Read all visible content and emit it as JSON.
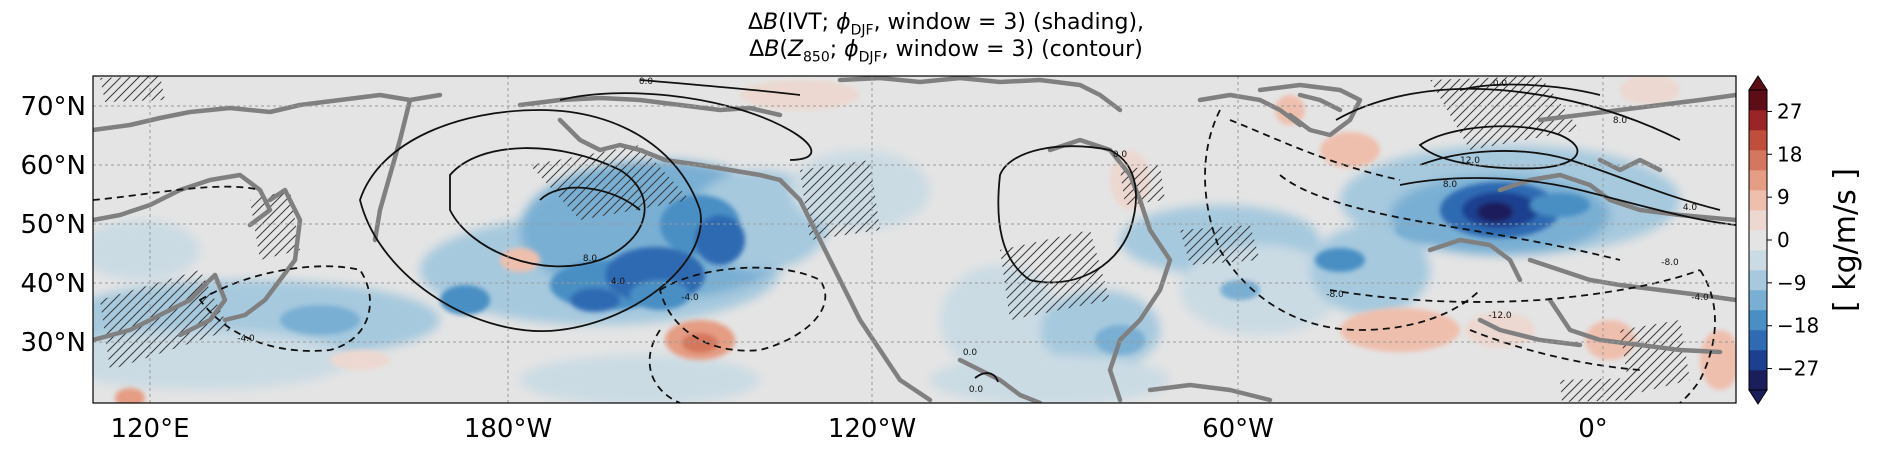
{
  "title": {
    "line1": {
      "delta": "Δ",
      "B": "B",
      "open": "(IVT; ",
      "phi": "ϕ",
      "sub": "DJF",
      "rest": ", window = 3) (shading),"
    },
    "line2": {
      "delta": "Δ",
      "B": "B",
      "open": "(",
      "Z": "Z",
      "zsub": "850",
      "mid": "; ",
      "phi": "ϕ",
      "sub": "DJF",
      "rest": ", window = 3) (contour)"
    }
  },
  "map": {
    "lon_ticks": [
      "120°E",
      "180°W",
      "120°W",
      "60°W",
      "0°"
    ],
    "lat_ticks": [
      "70°N",
      "60°N",
      "50°N",
      "40°N",
      "30°N"
    ],
    "contour_labels": [
      {
        "text": "0.0"
      },
      {
        "text": "8.0"
      },
      {
        "text": "4.0"
      },
      {
        "text": "-4.0"
      },
      {
        "text": "0.0"
      },
      {
        "text": "0.0"
      },
      {
        "text": "0.0"
      },
      {
        "text": "-4.0"
      },
      {
        "text": "0.0"
      },
      {
        "text": "8.0"
      },
      {
        "text": "12.0"
      },
      {
        "text": "8.0"
      },
      {
        "text": "4.0"
      },
      {
        "text": "-8.0"
      },
      {
        "text": "-12.0"
      },
      {
        "text": "-8.0"
      },
      {
        "text": "-4.0"
      }
    ],
    "colors": {
      "land": "#808080",
      "grid": "#9a9a9a",
      "neutral": "#e4e4e4"
    }
  },
  "colorbar": {
    "ticks": [
      "27",
      "18",
      "9",
      "0",
      "−9",
      "−18",
      "−27"
    ],
    "tick_values": [
      27,
      18,
      9,
      0,
      -9,
      -18,
      -27
    ],
    "range": [
      -31.5,
      31.5
    ],
    "label": "[ kg/m/s ]",
    "colors": [
      "#1a1f5c",
      "#1c3f8f",
      "#2e6bb2",
      "#4a8fc4",
      "#79afd3",
      "#a6c9de",
      "#cbdbe4",
      "#e4e4e4",
      "#ecd8d0",
      "#efbfae",
      "#e59d84",
      "#d4775c",
      "#bf4f3a",
      "#9b2427",
      "#5c0d16"
    ]
  }
}
